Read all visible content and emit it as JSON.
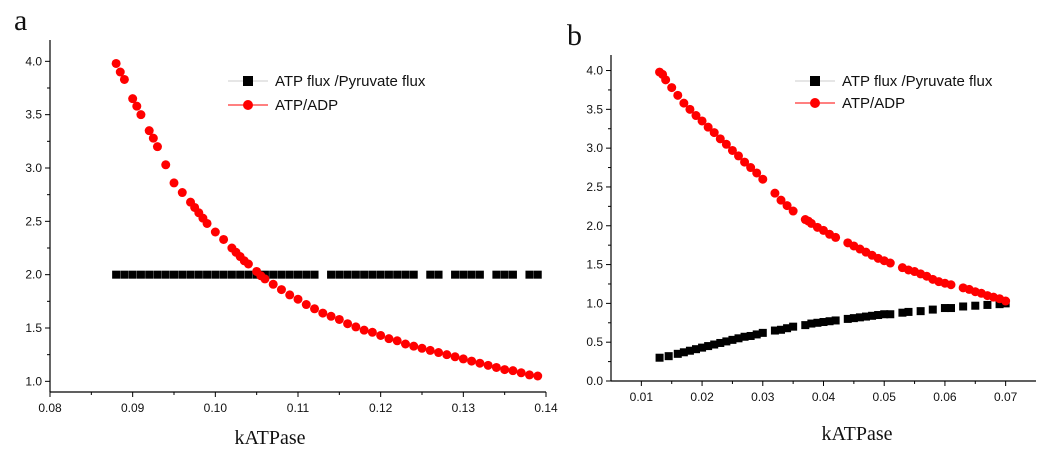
{
  "chart_data": [
    {
      "panel_label": "a",
      "type": "scatter",
      "xlabel": "kATPase",
      "ylabel": "",
      "xlim": [
        0.08,
        0.14
      ],
      "ylim": [
        0.9,
        4.2
      ],
      "xticks": [
        0.08,
        0.09,
        0.1,
        0.11,
        0.12,
        0.13,
        0.14
      ],
      "xtick_labels": [
        "0.08",
        "0.09",
        "0.10",
        "0.11",
        "0.12",
        "0.13",
        "0.14"
      ],
      "yticks": [
        1.0,
        1.5,
        2.0,
        2.5,
        3.0,
        3.5,
        4.0
      ],
      "ytick_labels": [
        "1.0",
        "1.5",
        "2.0",
        "2.5",
        "3.0",
        "3.5",
        "4.0"
      ],
      "grid": false,
      "legend_position": "top-right",
      "series": [
        {
          "name": "ATP flux /Pyruvate flux",
          "marker": "square",
          "color": "#000000",
          "x": [
            0.088,
            0.089,
            0.09,
            0.091,
            0.092,
            0.093,
            0.094,
            0.095,
            0.096,
            0.097,
            0.098,
            0.099,
            0.1,
            0.101,
            0.102,
            0.103,
            0.104,
            0.105,
            0.106,
            0.107,
            0.108,
            0.109,
            0.11,
            0.111,
            0.112,
            0.114,
            0.115,
            0.116,
            0.117,
            0.118,
            0.119,
            0.12,
            0.121,
            0.122,
            0.123,
            0.124,
            0.126,
            0.127,
            0.129,
            0.13,
            0.131,
            0.132,
            0.134,
            0.135,
            0.136,
            0.138,
            0.139
          ],
          "y": [
            2.0,
            2.0,
            2.0,
            2.0,
            2.0,
            2.0,
            2.0,
            2.0,
            2.0,
            2.0,
            2.0,
            2.0,
            2.0,
            2.0,
            2.0,
            2.0,
            2.0,
            2.0,
            2.0,
            2.0,
            2.0,
            2.0,
            2.0,
            2.0,
            2.0,
            2.0,
            2.0,
            2.0,
            2.0,
            2.0,
            2.0,
            2.0,
            2.0,
            2.0,
            2.0,
            2.0,
            2.0,
            2.0,
            2.0,
            2.0,
            2.0,
            2.0,
            2.0,
            2.0,
            2.0,
            2.0,
            2.0
          ]
        },
        {
          "name": "ATP/ADP",
          "marker": "circle",
          "color": "#ff0000",
          "x": [
            0.088,
            0.0885,
            0.089,
            0.09,
            0.0905,
            0.091,
            0.092,
            0.0925,
            0.093,
            0.094,
            0.095,
            0.096,
            0.097,
            0.0975,
            0.098,
            0.0985,
            0.099,
            0.1,
            0.101,
            0.102,
            0.1025,
            0.103,
            0.1035,
            0.104,
            0.105,
            0.1055,
            0.106,
            0.107,
            0.108,
            0.109,
            0.11,
            0.111,
            0.112,
            0.113,
            0.114,
            0.115,
            0.116,
            0.117,
            0.118,
            0.119,
            0.12,
            0.121,
            0.122,
            0.123,
            0.124,
            0.125,
            0.126,
            0.127,
            0.128,
            0.129,
            0.13,
            0.131,
            0.132,
            0.133,
            0.134,
            0.135,
            0.136,
            0.137,
            0.138,
            0.139
          ],
          "y": [
            3.98,
            3.9,
            3.83,
            3.65,
            3.58,
            3.5,
            3.35,
            3.28,
            3.2,
            3.03,
            2.86,
            2.77,
            2.68,
            2.63,
            2.58,
            2.53,
            2.48,
            2.4,
            2.33,
            2.25,
            2.21,
            2.17,
            2.13,
            2.1,
            2.03,
            1.99,
            1.96,
            1.91,
            1.86,
            1.81,
            1.77,
            1.72,
            1.68,
            1.64,
            1.61,
            1.58,
            1.54,
            1.51,
            1.48,
            1.46,
            1.43,
            1.4,
            1.38,
            1.35,
            1.33,
            1.31,
            1.29,
            1.27,
            1.25,
            1.23,
            1.21,
            1.19,
            1.17,
            1.15,
            1.13,
            1.11,
            1.1,
            1.08,
            1.06,
            1.05
          ]
        }
      ]
    },
    {
      "panel_label": "b",
      "type": "scatter",
      "xlabel": "kATPase",
      "ylabel": "",
      "xlim": [
        0.005,
        0.075
      ],
      "ylim": [
        0.0,
        4.2
      ],
      "xticks": [
        0.01,
        0.02,
        0.03,
        0.04,
        0.05,
        0.06,
        0.07
      ],
      "xtick_labels": [
        "0.01",
        "0.02",
        "0.03",
        "0.04",
        "0.05",
        "0.06",
        "0.07"
      ],
      "yticks": [
        0.0,
        0.5,
        1.0,
        1.5,
        2.0,
        2.5,
        3.0,
        3.5,
        4.0
      ],
      "ytick_labels": [
        "0.0",
        "0.5",
        "1.0",
        "1.5",
        "2.0",
        "2.5",
        "3.0",
        "3.5",
        "4.0"
      ],
      "grid": false,
      "legend_position": "top-right",
      "series": [
        {
          "name": "ATP flux /Pyruvate flux",
          "marker": "square",
          "color": "#000000",
          "x": [
            0.013,
            0.0145,
            0.016,
            0.017,
            0.018,
            0.019,
            0.02,
            0.021,
            0.022,
            0.023,
            0.024,
            0.025,
            0.026,
            0.027,
            0.028,
            0.029,
            0.03,
            0.032,
            0.033,
            0.034,
            0.035,
            0.037,
            0.038,
            0.039,
            0.04,
            0.041,
            0.042,
            0.044,
            0.045,
            0.046,
            0.047,
            0.048,
            0.049,
            0.05,
            0.051,
            0.053,
            0.054,
            0.056,
            0.058,
            0.06,
            0.061,
            0.063,
            0.065,
            0.067,
            0.069,
            0.07
          ],
          "y": [
            0.3,
            0.32,
            0.35,
            0.37,
            0.39,
            0.41,
            0.43,
            0.45,
            0.47,
            0.49,
            0.51,
            0.53,
            0.55,
            0.57,
            0.58,
            0.6,
            0.62,
            0.65,
            0.66,
            0.68,
            0.7,
            0.72,
            0.74,
            0.75,
            0.76,
            0.77,
            0.78,
            0.8,
            0.81,
            0.82,
            0.83,
            0.84,
            0.85,
            0.86,
            0.86,
            0.88,
            0.89,
            0.9,
            0.92,
            0.94,
            0.94,
            0.96,
            0.97,
            0.98,
            0.99,
            1.0
          ]
        },
        {
          "name": "ATP/ADP",
          "marker": "circle",
          "color": "#ff0000",
          "x": [
            0.013,
            0.0135,
            0.014,
            0.015,
            0.016,
            0.017,
            0.018,
            0.019,
            0.02,
            0.021,
            0.022,
            0.023,
            0.024,
            0.025,
            0.026,
            0.027,
            0.028,
            0.029,
            0.03,
            0.032,
            0.033,
            0.034,
            0.035,
            0.037,
            0.0375,
            0.038,
            0.039,
            0.04,
            0.041,
            0.042,
            0.044,
            0.045,
            0.046,
            0.047,
            0.048,
            0.049,
            0.05,
            0.051,
            0.053,
            0.054,
            0.055,
            0.056,
            0.057,
            0.058,
            0.059,
            0.06,
            0.061,
            0.063,
            0.064,
            0.065,
            0.066,
            0.067,
            0.068,
            0.069,
            0.07
          ],
          "y": [
            3.98,
            3.95,
            3.88,
            3.78,
            3.68,
            3.58,
            3.5,
            3.42,
            3.35,
            3.27,
            3.2,
            3.12,
            3.05,
            2.97,
            2.9,
            2.82,
            2.75,
            2.68,
            2.6,
            2.42,
            2.33,
            2.26,
            2.19,
            2.08,
            2.06,
            2.03,
            1.98,
            1.94,
            1.89,
            1.85,
            1.78,
            1.74,
            1.7,
            1.66,
            1.62,
            1.58,
            1.55,
            1.52,
            1.46,
            1.43,
            1.41,
            1.38,
            1.35,
            1.31,
            1.28,
            1.26,
            1.24,
            1.2,
            1.18,
            1.15,
            1.13,
            1.1,
            1.08,
            1.06,
            1.03
          ]
        }
      ]
    }
  ]
}
